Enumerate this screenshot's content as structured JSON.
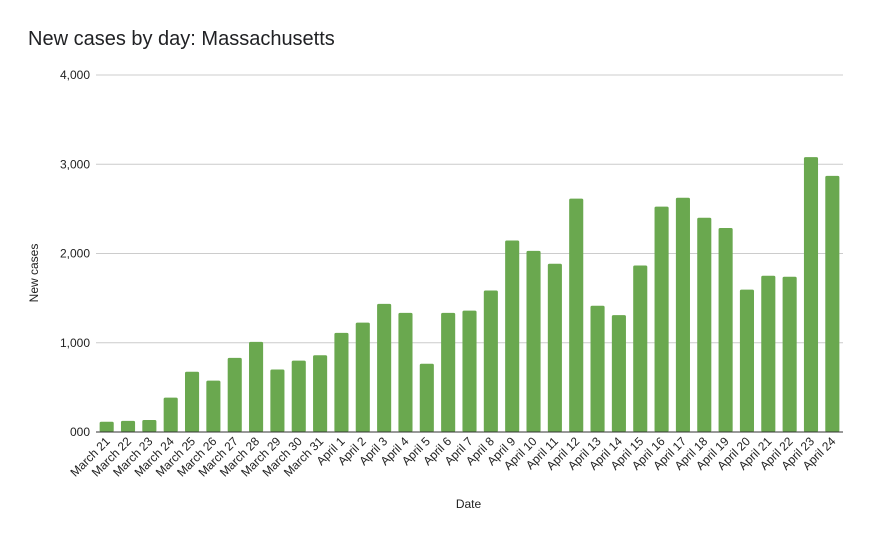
{
  "chart_data": {
    "type": "bar",
    "title": "New cases by day: Massachusetts",
    "xlabel": "Date",
    "ylabel": "New cases",
    "ylim": [
      0,
      4000
    ],
    "yticks": [
      0,
      1000,
      2000,
      3000,
      4000
    ],
    "ytick_labels": [
      "000",
      "1,000",
      "2,000",
      "3,000",
      "4,000"
    ],
    "grid": true,
    "legend": "none",
    "bar_color": "#6aa84f",
    "categories": [
      "March 21",
      "March 22",
      "March 23",
      "March 24",
      "March 25",
      "March 26",
      "March 27",
      "March 28",
      "March 29",
      "March 30",
      "March 31",
      "April 1",
      "April 2",
      "April 3",
      "April 4",
      "April 5",
      "April 6",
      "April 7",
      "April 8",
      "April 9",
      "April 10",
      "April 11",
      "April 12",
      "April 13",
      "April 14",
      "April 15",
      "April 16",
      "April 17",
      "April 18",
      "April 19",
      "April 20",
      "April 21",
      "April 22",
      "April 23",
      "April 24"
    ],
    "values": [
      115,
      125,
      135,
      385,
      675,
      575,
      830,
      1010,
      700,
      800,
      860,
      1110,
      1225,
      1435,
      1335,
      765,
      1335,
      1360,
      1585,
      2145,
      2030,
      1885,
      2615,
      1415,
      1310,
      1865,
      2525,
      2625,
      2400,
      2285,
      1595,
      1750,
      1740,
      3080,
      2870
    ]
  }
}
